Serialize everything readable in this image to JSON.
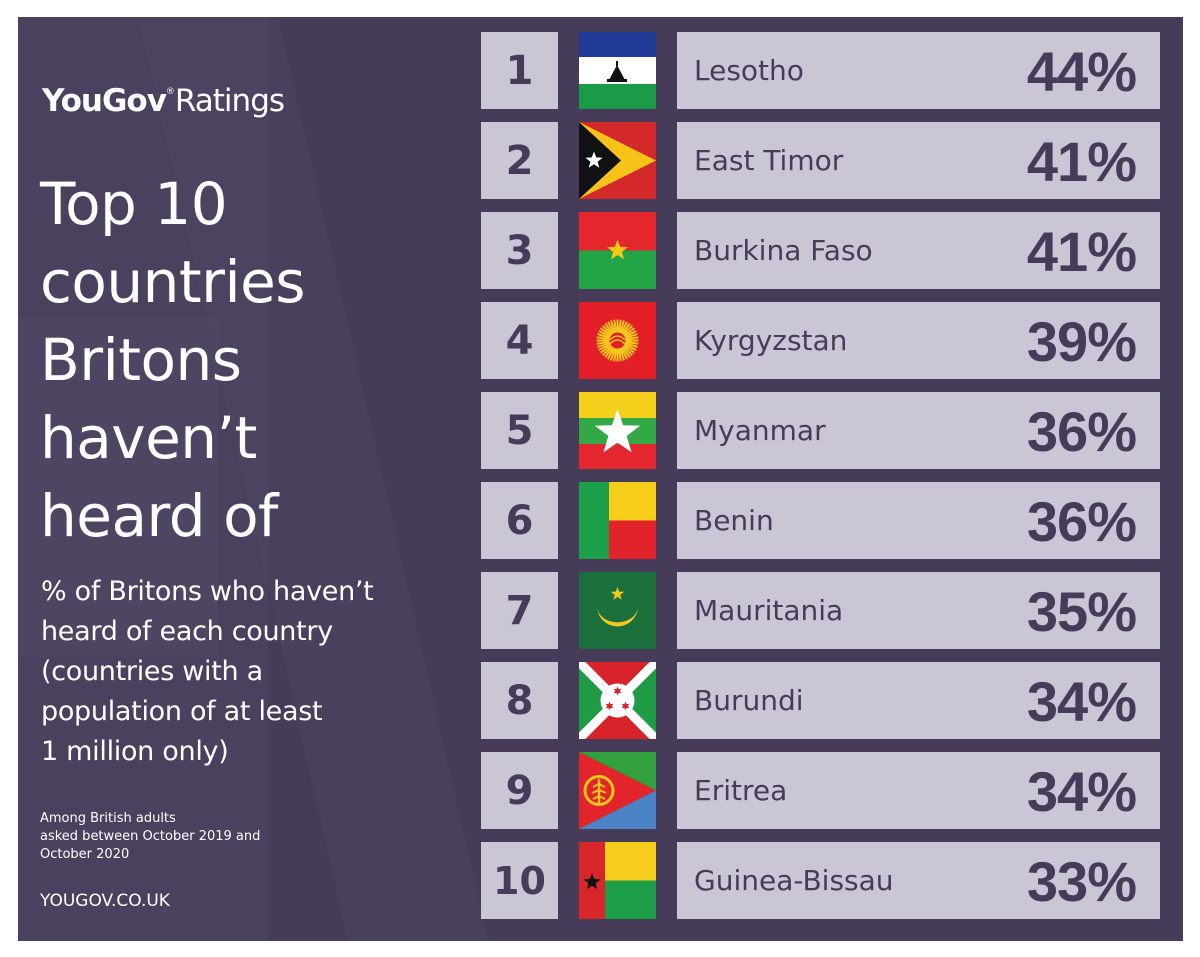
{
  "brand": {
    "name_bold": "YouGov",
    "registered": "®",
    "name_light": "Ratings"
  },
  "title": "Top 10\ncountries\nBritons\nhaven’t\nheard of",
  "subtitle": "% of Britons who haven’t\nheard of each country\n(countries with a\npopulation of at least\n1 million only)",
  "note": "Among British adults\nasked between October 2019 and\nOctober 2020",
  "source": "YOUGOV.CO.UK",
  "colors": {
    "panel": "#463c5a",
    "row": "#cbc6d6",
    "text_dark": "#463c5a"
  },
  "chart_data": {
    "type": "table",
    "title": "Top 10 countries Britons haven’t heard of",
    "unit": "%",
    "rows": [
      {
        "rank": "1",
        "country": "Lesotho",
        "value": 44,
        "label": "44%",
        "flag": "lesotho-flag-icon"
      },
      {
        "rank": "2",
        "country": "East Timor",
        "value": 41,
        "label": "41%",
        "flag": "east-timor-flag-icon"
      },
      {
        "rank": "3",
        "country": "Burkina Faso",
        "value": 41,
        "label": "41%",
        "flag": "burkina-faso-flag-icon"
      },
      {
        "rank": "4",
        "country": "Kyrgyzstan",
        "value": 39,
        "label": "39%",
        "flag": "kyrgyzstan-flag-icon"
      },
      {
        "rank": "5",
        "country": "Myanmar",
        "value": 36,
        "label": "36%",
        "flag": "myanmar-flag-icon"
      },
      {
        "rank": "6",
        "country": "Benin",
        "value": 36,
        "label": "36%",
        "flag": "benin-flag-icon"
      },
      {
        "rank": "7",
        "country": "Mauritania",
        "value": 35,
        "label": "35%",
        "flag": "mauritania-flag-icon"
      },
      {
        "rank": "8",
        "country": "Burundi",
        "value": 34,
        "label": "34%",
        "flag": "burundi-flag-icon"
      },
      {
        "rank": "9",
        "country": "Eritrea",
        "value": 34,
        "label": "34%",
        "flag": "eritrea-flag-icon"
      },
      {
        "rank": "10",
        "country": "Guinea-Bissau",
        "value": 33,
        "label": "33%",
        "flag": "guinea-bissau-flag-icon"
      }
    ]
  }
}
